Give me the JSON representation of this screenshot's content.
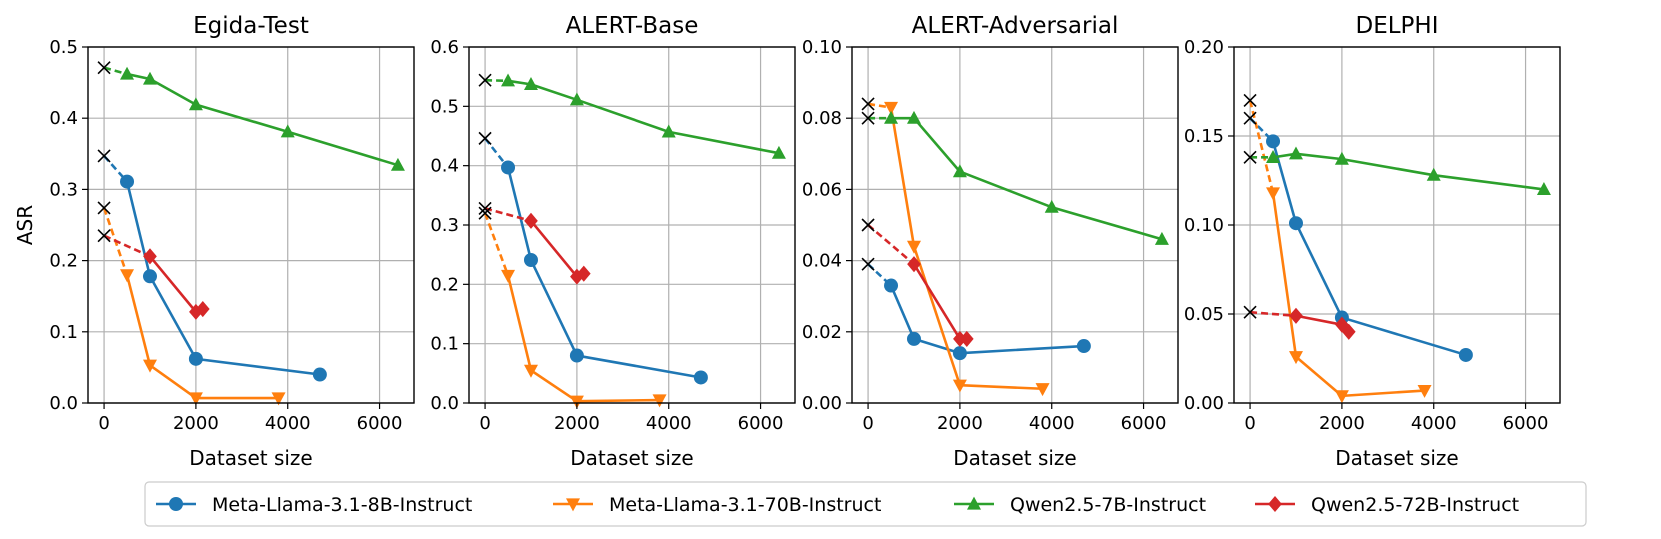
{
  "chart_data": {
    "type": "line",
    "ylabel": "ASR",
    "xlabel": "Dataset size",
    "xlim": [
      -350,
      6750
    ],
    "xticks": [
      0,
      2000,
      4000,
      6000
    ],
    "xtick_labels": [
      "0",
      "2000",
      "4000",
      "6000"
    ],
    "grid": true,
    "legend": {
      "position": "bottom-center",
      "entries": [
        {
          "label": "Meta-Llama-3.1-8B-Instruct",
          "color": "#1f77b4",
          "marker": "circle"
        },
        {
          "label": "Meta-Llama-3.1-70B-Instruct",
          "color": "#ff7f0e",
          "marker": "triangle-down"
        },
        {
          "label": "Qwen2.5-7B-Instruct",
          "color": "#2ca02c",
          "marker": "triangle-up"
        },
        {
          "label": "Qwen2.5-72B-Instruct",
          "color": "#d62728",
          "marker": "diamond"
        }
      ]
    },
    "baseline_marker": "x",
    "baseline_note": "Dataset size 0 (x marker) is the untuned baseline, joined to the first fine-tuned point by a dashed line.",
    "panels": [
      {
        "title": "Egida-Test",
        "ylim": [
          0,
          0.5
        ],
        "yticks": [
          0,
          0.1,
          0.2,
          0.3,
          0.4,
          0.5
        ],
        "ytick_labels": [
          "0.0",
          "0.1",
          "0.2",
          "0.3",
          "0.4",
          "0.5"
        ],
        "series": [
          {
            "name": "Meta-Llama-3.1-8B-Instruct",
            "baseline": 0.347,
            "x": [
              500,
              1000,
              2000,
              4700
            ],
            "y": [
              0.311,
              0.178,
              0.062,
              0.04
            ]
          },
          {
            "name": "Meta-Llama-3.1-70B-Instruct",
            "baseline": 0.274,
            "x": [
              500,
              1000,
              2000,
              3800
            ],
            "y": [
              0.18,
              0.053,
              0.007,
              0.007
            ]
          },
          {
            "name": "Qwen2.5-7B-Instruct",
            "baseline": 0.471,
            "x": [
              500,
              1000,
              2000,
              4000,
              6400
            ],
            "y": [
              0.462,
              0.455,
              0.419,
              0.381,
              0.334
            ]
          },
          {
            "name": "Qwen2.5-72B-Instruct",
            "baseline": 0.235,
            "x": [
              1000,
              2000,
              2150
            ],
            "y": [
              0.206,
              0.128,
              0.132
            ]
          }
        ]
      },
      {
        "title": "ALERT-Base",
        "ylim": [
          0,
          0.6
        ],
        "yticks": [
          0,
          0.1,
          0.2,
          0.3,
          0.4,
          0.5,
          0.6
        ],
        "ytick_labels": [
          "0.0",
          "0.1",
          "0.2",
          "0.3",
          "0.4",
          "0.5",
          "0.6"
        ],
        "series": [
          {
            "name": "Meta-Llama-3.1-8B-Instruct",
            "baseline": 0.446,
            "x": [
              500,
              1000,
              2000,
              4700
            ],
            "y": [
              0.397,
              0.241,
              0.08,
              0.043
            ]
          },
          {
            "name": "Meta-Llama-3.1-70B-Instruct",
            "baseline": 0.32,
            "x": [
              500,
              1000,
              2000,
              3800
            ],
            "y": [
              0.215,
              0.055,
              0.003,
              0.005
            ]
          },
          {
            "name": "Qwen2.5-7B-Instruct",
            "baseline": 0.544,
            "x": [
              500,
              1000,
              2000,
              4000,
              6400
            ],
            "y": [
              0.543,
              0.537,
              0.511,
              0.457,
              0.421
            ]
          },
          {
            "name": "Qwen2.5-72B-Instruct",
            "baseline": 0.328,
            "x": [
              1000,
              2000,
              2150
            ],
            "y": [
              0.307,
              0.213,
              0.218
            ]
          }
        ]
      },
      {
        "title": "ALERT-Adversarial",
        "ylim": [
          0,
          0.1
        ],
        "yticks": [
          0,
          0.02,
          0.04,
          0.06,
          0.08,
          0.1
        ],
        "ytick_labels": [
          "0.00",
          "0.02",
          "0.04",
          "0.06",
          "0.08",
          "0.10"
        ],
        "series": [
          {
            "name": "Meta-Llama-3.1-8B-Instruct",
            "baseline": 0.039,
            "x": [
              500,
              1000,
              2000,
              4700
            ],
            "y": [
              0.033,
              0.018,
              0.014,
              0.016
            ]
          },
          {
            "name": "Meta-Llama-3.1-70B-Instruct",
            "baseline": 0.084,
            "x": [
              500,
              1000,
              2000,
              3800
            ],
            "y": [
              0.083,
              0.044,
              0.005,
              0.004
            ]
          },
          {
            "name": "Qwen2.5-7B-Instruct",
            "baseline": 0.08,
            "x": [
              500,
              1000,
              2000,
              4000,
              6400
            ],
            "y": [
              0.08,
              0.08,
              0.065,
              0.055,
              0.046
            ]
          },
          {
            "name": "Qwen2.5-72B-Instruct",
            "baseline": 0.05,
            "x": [
              1000,
              2000,
              2150
            ],
            "y": [
              0.039,
              0.018,
              0.018
            ]
          }
        ]
      },
      {
        "title": "DELPHI",
        "ylim": [
          0,
          0.2
        ],
        "yticks": [
          0,
          0.05,
          0.1,
          0.15,
          0.2
        ],
        "ytick_labels": [
          "0.00",
          "0.05",
          "0.10",
          "0.15",
          "0.20"
        ],
        "series": [
          {
            "name": "Meta-Llama-3.1-8B-Instruct",
            "baseline": 0.16,
            "x": [
              500,
              1000,
              2000,
              4700
            ],
            "y": [
              0.147,
              0.101,
              0.048,
              0.027
            ]
          },
          {
            "name": "Meta-Llama-3.1-70B-Instruct",
            "baseline": 0.17,
            "x": [
              500,
              1000,
              2000,
              3800
            ],
            "y": [
              0.118,
              0.026,
              0.004,
              0.007
            ]
          },
          {
            "name": "Qwen2.5-7B-Instruct",
            "baseline": 0.138,
            "x": [
              500,
              1000,
              2000,
              4000,
              6400
            ],
            "y": [
              0.138,
              0.14,
              0.137,
              0.128,
              0.12
            ]
          },
          {
            "name": "Qwen2.5-72B-Instruct",
            "baseline": 0.051,
            "x": [
              1000,
              2000,
              2150
            ],
            "y": [
              0.049,
              0.044,
              0.04
            ]
          }
        ]
      }
    ]
  }
}
